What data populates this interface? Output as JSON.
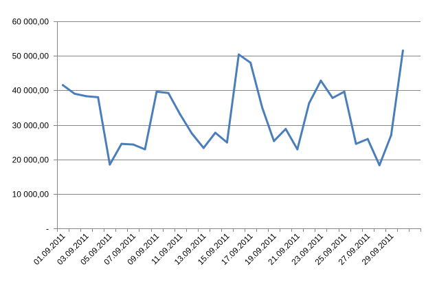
{
  "chart_data": {
    "type": "line",
    "title": "",
    "xlabel": "",
    "ylabel": "",
    "ylim": [
      0,
      60000
    ],
    "y_ticks": [
      {
        "value": 0,
        "label": "-"
      },
      {
        "value": 10000,
        "label": "10 000,00"
      },
      {
        "value": 20000,
        "label": "20 000,00"
      },
      {
        "value": 30000,
        "label": "30 000,00"
      },
      {
        "value": 40000,
        "label": "40 000,00"
      },
      {
        "value": 50000,
        "label": "50 000,00"
      },
      {
        "value": 60000,
        "label": "60 000,00"
      }
    ],
    "grid": true,
    "legend": "none",
    "x": [
      "01.09.2011",
      "02.09.2011",
      "03.09.2011",
      "04.09.2011",
      "05.09.2011",
      "06.09.2011",
      "07.09.2011",
      "08.09.2011",
      "09.09.2011",
      "10.09.2011",
      "11.09.2011",
      "12.09.2011",
      "13.09.2011",
      "14.09.2011",
      "15.09.2011",
      "16.09.2011",
      "17.09.2011",
      "18.09.2011",
      "19.09.2011",
      "20.09.2011",
      "21.09.2011",
      "22.09.2011",
      "23.09.2011",
      "24.09.2011",
      "25.09.2011",
      "26.09.2011",
      "27.09.2011",
      "28.09.2011",
      "29.09.2011",
      "30.09.2011",
      "01.10.2011"
    ],
    "x_tick_labels": [
      "01.09.2011",
      "03.09.2011",
      "05.09.2011",
      "07.09.2011",
      "09.09.2011",
      "11.09.2011",
      "13.09.2011",
      "15.09.2011",
      "17.09.2011",
      "19.09.2011",
      "21.09.2011",
      "23.09.2011",
      "25.09.2011",
      "27.09.2011",
      "29.09.2011"
    ],
    "series": [
      {
        "color": "#4a7ebb",
        "values": [
          41500,
          39000,
          38300,
          38000,
          18500,
          24500,
          24300,
          22900,
          39600,
          39200,
          33000,
          27500,
          23300,
          27700,
          24900,
          50400,
          48000,
          35000,
          25300,
          28800,
          22900,
          36300,
          42800,
          37800,
          39600,
          24500,
          25900,
          18300,
          27000,
          51500,
          null
        ]
      }
    ]
  }
}
